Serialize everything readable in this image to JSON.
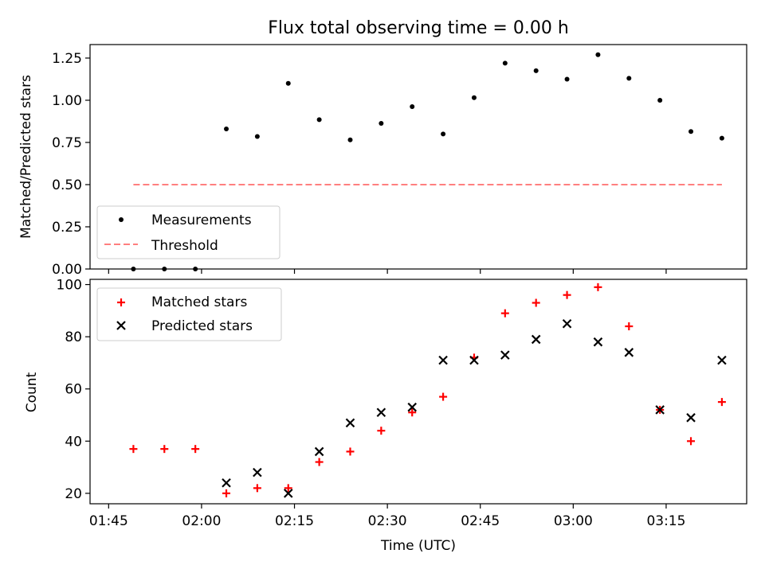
{
  "chart_data": [
    {
      "type": "scatter",
      "title": "Flux total observing time = 0.00 h",
      "xlabel": "",
      "ylabel": "Matched/Predicted stars",
      "xlim": [
        -3,
        103
      ],
      "ylim": [
        0,
        1.33
      ],
      "y_ticks": [
        "0.00",
        "0.25",
        "0.50",
        "0.75",
        "1.00",
        "1.25"
      ],
      "legend_position": "lower-left",
      "grid": false,
      "series": [
        {
          "name": "Measurements",
          "kind": "points",
          "color": "#000000",
          "x": [
            4,
            9,
            14,
            19,
            24,
            29,
            34,
            39,
            44,
            49,
            54,
            59,
            64,
            69,
            74,
            79,
            84,
            89,
            94,
            99
          ],
          "y": [
            0,
            0,
            0,
            0.83,
            0.785,
            1.1,
            0.885,
            0.765,
            0.863,
            0.962,
            0.8,
            1.015,
            1.22,
            1.175,
            1.125,
            1.27,
            1.13,
            1.0,
            0.815,
            0.775
          ]
        },
        {
          "name": "Threshold",
          "kind": "dashed-line",
          "color": "#ff7f7f",
          "x": [
            4,
            99
          ],
          "y": [
            0.5,
            0.5
          ]
        }
      ]
    },
    {
      "type": "scatter",
      "title": "",
      "xlabel": "Time (UTC)",
      "ylabel": "Count",
      "xlim": [
        -3,
        103
      ],
      "ylim": [
        16,
        102
      ],
      "x_ticks": [
        {
          "value": 0,
          "label": "01:45"
        },
        {
          "value": 15,
          "label": "02:00"
        },
        {
          "value": 30,
          "label": "02:15"
        },
        {
          "value": 45,
          "label": "02:30"
        },
        {
          "value": 60,
          "label": "02:45"
        },
        {
          "value": 75,
          "label": "03:00"
        },
        {
          "value": 90,
          "label": "03:15"
        }
      ],
      "y_ticks": [
        "20",
        "40",
        "60",
        "80",
        "100"
      ],
      "legend_position": "top-left",
      "grid": false,
      "series": [
        {
          "name": "Matched stars",
          "marker": "plus",
          "color": "#ff0000",
          "x": [
            4,
            9,
            14,
            19,
            24,
            29,
            34,
            39,
            44,
            49,
            54,
            59,
            64,
            69,
            74,
            79,
            84,
            89,
            94,
            99
          ],
          "y": [
            37,
            37,
            37,
            20,
            22,
            22,
            32,
            36,
            44,
            51,
            57,
            72,
            89,
            93,
            96,
            99,
            84,
            52,
            40,
            55
          ]
        },
        {
          "name": "Predicted stars",
          "marker": "x",
          "color": "#000000",
          "x": [
            19,
            24,
            29,
            34,
            39,
            44,
            49,
            54,
            59,
            64,
            69,
            74,
            79,
            84,
            89,
            94,
            99
          ],
          "y": [
            24,
            28,
            20,
            36,
            47,
            51,
            53,
            71,
            71,
            73,
            79,
            85,
            78,
            74,
            52,
            49,
            71
          ]
        }
      ]
    }
  ]
}
